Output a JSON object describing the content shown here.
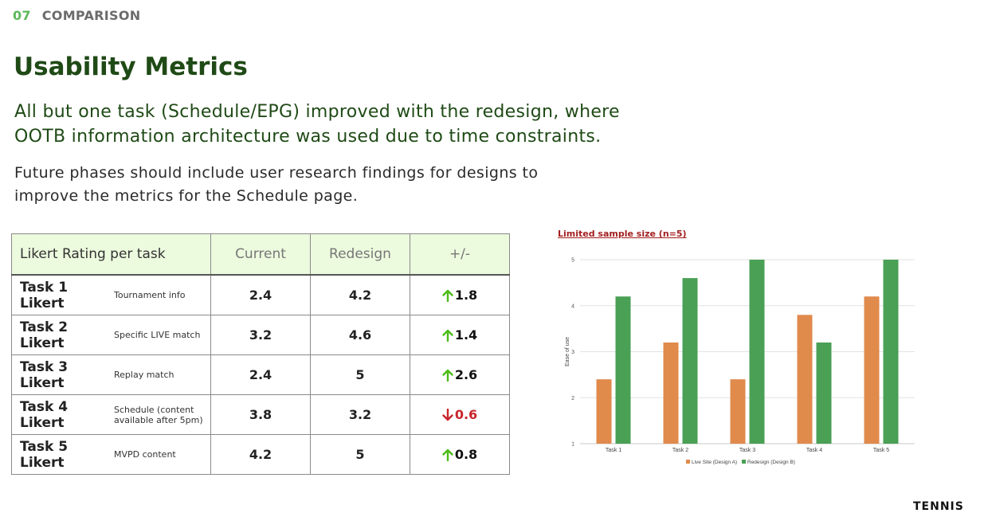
{
  "section": {
    "number": "07",
    "name": "COMPARISON"
  },
  "title": "Usability Metrics",
  "subtitle": "All but one task (Schedule/EPG) improved with the redesign, where OOTB information architecture was used due to time constraints.",
  "body": "Future phases should include user research findings for designs to improve the metrics for the Schedule page.",
  "table": {
    "headers": [
      "Likert Rating per task",
      "Current",
      "Redesign",
      "+/-"
    ],
    "rows": [
      {
        "task": "Task 1 Likert",
        "desc": "Tournament info",
        "current": "2.4",
        "redesign": "4.2",
        "delta": "1.8",
        "direction": "up"
      },
      {
        "task": "Task 2 Likert",
        "desc": "Specific LIVE match",
        "current": "3.2",
        "redesign": "4.6",
        "delta": "1.4",
        "direction": "up"
      },
      {
        "task": "Task 3 Likert",
        "desc": "Replay match",
        "current": "2.4",
        "redesign": "5",
        "delta": "2.6",
        "direction": "up"
      },
      {
        "task": "Task 4 Likert",
        "desc": "Schedule (content available after 5pm)",
        "current": "3.8",
        "redesign": "3.2",
        "delta": "0.6",
        "direction": "down"
      },
      {
        "task": "Task 5 Likert",
        "desc": "MVPD content",
        "current": "4.2",
        "redesign": "5",
        "delta": "0.8",
        "direction": "up"
      }
    ]
  },
  "colors": {
    "up_arrow": "#4cbb17",
    "down_arrow": "#c9242b"
  },
  "chart_data": {
    "type": "bar",
    "title": "Limited sample size (n=5)",
    "xlabel": "",
    "ylabel": "Ease of use",
    "categories": [
      "Task 1",
      "Task 2",
      "Task 3",
      "Task 4",
      "Task 5"
    ],
    "series": [
      {
        "name": "Live Site (Design A)",
        "values": [
          2.4,
          3.2,
          2.4,
          3.8,
          4.2
        ],
        "color": "#e08a4c"
      },
      {
        "name": "Redesign (Design B)",
        "values": [
          4.2,
          4.6,
          5,
          3.2,
          5
        ],
        "color": "#4aa055"
      }
    ],
    "ylim": [
      1,
      5
    ],
    "yticks": [
      1,
      2,
      3,
      4,
      5
    ],
    "grid": true,
    "legend": "bottom"
  },
  "logo": "TENNIS"
}
